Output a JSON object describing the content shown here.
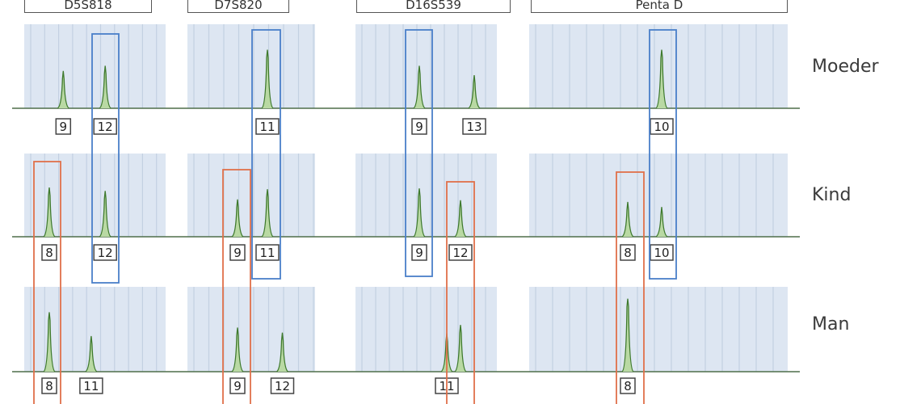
{
  "markers": [
    {
      "name": "D5S818"
    },
    {
      "name": "D7S820"
    },
    {
      "name": "D16S539"
    },
    {
      "name": "Penta D"
    }
  ],
  "rows": [
    {
      "label": "Moeder",
      "peaks": [
        {
          "marker": 0,
          "allele": 9,
          "height": 0.44,
          "label": "9"
        },
        {
          "marker": 0,
          "allele": 12,
          "height": 0.5,
          "label": "12"
        },
        {
          "marker": 1,
          "allele": 11,
          "height": 0.69,
          "label": "11"
        },
        {
          "marker": 2,
          "allele": 9,
          "height": 0.5,
          "label": "9"
        },
        {
          "marker": 2,
          "allele": 13,
          "height": 0.39,
          "label": "13"
        },
        {
          "marker": 3,
          "allele": 10,
          "height": 0.69,
          "label": "10"
        }
      ]
    },
    {
      "label": "Kind",
      "peaks": [
        {
          "marker": 0,
          "allele": 8,
          "height": 0.58,
          "label": "8"
        },
        {
          "marker": 0,
          "allele": 12,
          "height": 0.54,
          "label": "12"
        },
        {
          "marker": 1,
          "allele": 9,
          "height": 0.44,
          "label": "9"
        },
        {
          "marker": 1,
          "allele": 11,
          "height": 0.56,
          "label": "11"
        },
        {
          "marker": 2,
          "allele": 9,
          "height": 0.57,
          "label": "9"
        },
        {
          "marker": 2,
          "allele": 12,
          "height": 0.43,
          "label": "12"
        },
        {
          "marker": 3,
          "allele": 8,
          "height": 0.41,
          "label": "8"
        },
        {
          "marker": 3,
          "allele": 10,
          "height": 0.35,
          "label": "10"
        }
      ]
    },
    {
      "label": "Man",
      "peaks": [
        {
          "marker": 0,
          "allele": 8,
          "height": 0.7,
          "label": "8"
        },
        {
          "marker": 0,
          "allele": 11,
          "height": 0.42,
          "label": "11"
        },
        {
          "marker": 1,
          "allele": 9,
          "height": 0.52,
          "label": "9"
        },
        {
          "marker": 1,
          "allele": 12,
          "height": 0.46,
          "label": "12"
        },
        {
          "marker": 2,
          "allele": 11,
          "height": 0.45,
          "label": "11"
        },
        {
          "marker": 2,
          "allele": 12,
          "height": 0.55,
          "label": ""
        },
        {
          "marker": 3,
          "allele": 8,
          "height": 0.86,
          "label": "8"
        }
      ]
    }
  ],
  "colors": {
    "maternal_box": "#4a7fc9",
    "paternal_box": "#e0704a",
    "peak": "#3f7a2e",
    "panel_bg": "#dde6f2",
    "baseline": "#4f6e4a"
  }
}
